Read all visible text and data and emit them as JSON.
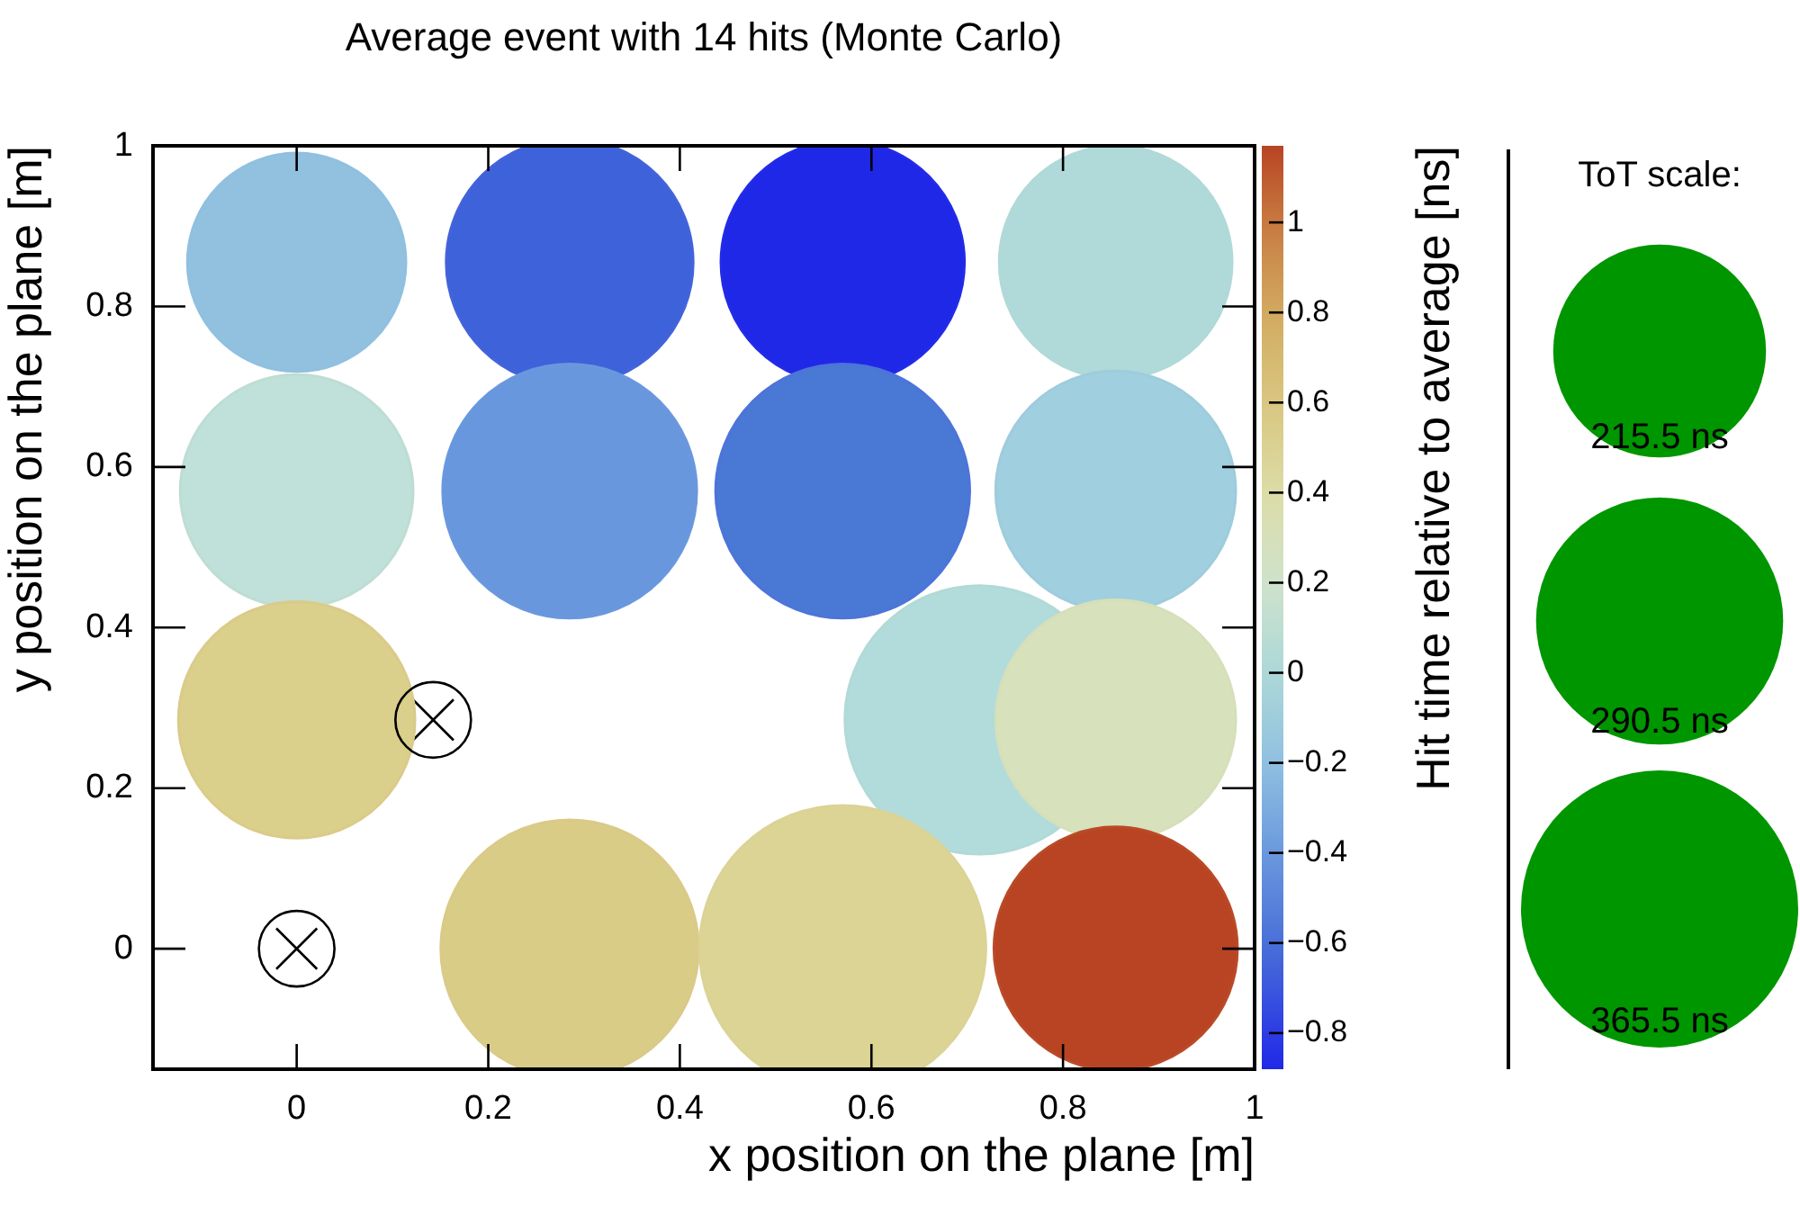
{
  "chart_data": {
    "type": "bubble",
    "title": "Average event with 14 hits (Monte Carlo)",
    "xlabel": "x position on the plane [m]",
    "ylabel": "y position on the plane [m]",
    "clabel": "Hit time relative to average [ns]",
    "legend_title": "ToT scale:",
    "xlim": [
      -0.15,
      1
    ],
    "ylim": [
      -0.15,
      1
    ],
    "xticks": [
      0,
      0.2,
      0.4,
      0.6,
      0.8,
      1
    ],
    "yticks": [
      0,
      0.2,
      0.4,
      0.6,
      0.8,
      1
    ],
    "clim": [
      -0.88,
      1.17
    ],
    "cticks": [
      -0.8,
      -0.6,
      -0.4,
      -0.2,
      0,
      0.2,
      0.4,
      0.6,
      0.8,
      1
    ],
    "size_legend": [
      {
        "value": 215.5,
        "label": "215.5 ns"
      },
      {
        "value": 290.5,
        "label": "290.5 ns"
      },
      {
        "value": 365.5,
        "label": "365.5 ns"
      }
    ],
    "series": [
      {
        "type": "bubble",
        "x": [
          0,
          0.285,
          0.57,
          0.855,
          0,
          0.285,
          0.57,
          0.855,
          0,
          0.7125,
          0.855,
          0.285,
          0.57,
          0.855
        ],
        "values": [
          0.855,
          0.855,
          0.855,
          0.855,
          0.57,
          0.57,
          0.57,
          0.57,
          0.285,
          0.285,
          0.285,
          0,
          0,
          0
        ],
        "sizes": [
          227,
          290,
          282,
          258,
          258,
          307,
          307,
          274,
          266,
          343,
          274,
          316,
          390,
          282
        ],
        "cvalues": [
          -0.2,
          -0.65,
          -0.87,
          0.02,
          0.1,
          -0.4,
          -0.58,
          -0.1,
          0.55,
          0.03,
          0.3,
          0.56,
          0.49,
          1.15
        ],
        "colors": [
          "#92c1df",
          "#3e62da",
          "#2028e8",
          "#b0d9d9",
          "#c0e1d9",
          "#6897de",
          "#4a78d5",
          "#a0cfdf",
          "#dacf8b",
          "#b2dbdb",
          "#d7e1bb",
          "#d9cc87",
          "#dcd495",
          "#b84424"
        ]
      },
      {
        "type": "scatter",
        "x": [
          0.1425,
          0
        ],
        "values": [
          0.285,
          0
        ],
        "marker": "cross",
        "color": "#000000"
      }
    ]
  }
}
